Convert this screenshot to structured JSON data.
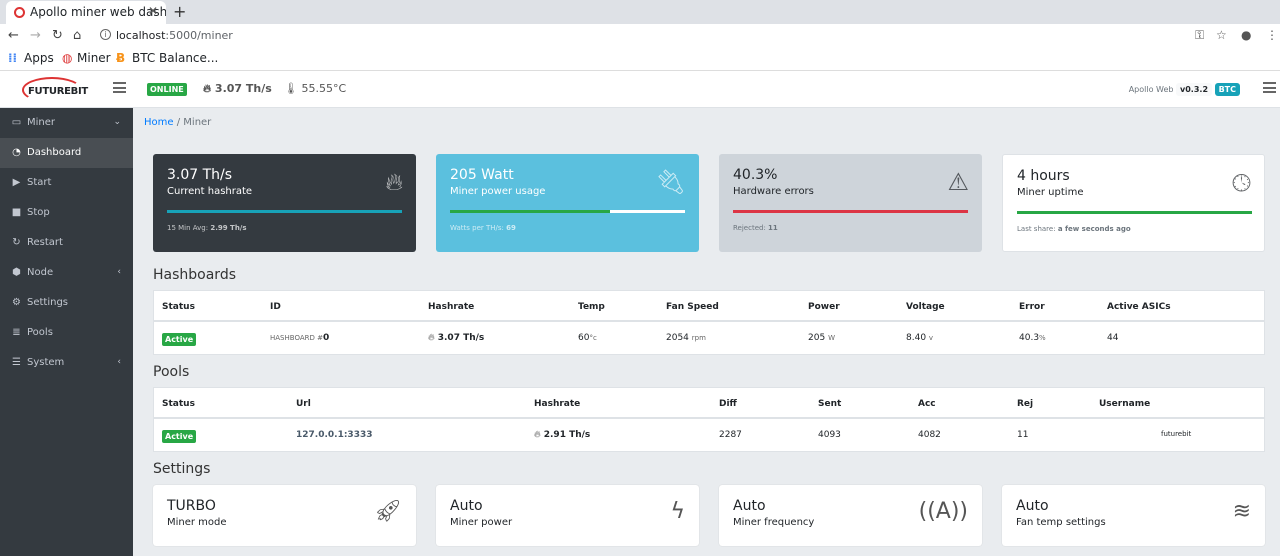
{
  "browser": {
    "tab_title": "Apollo miner web dash",
    "new_tab": "+",
    "host": "localhost",
    "path": ":5000/miner",
    "bookmarks": [
      {
        "label": "Apps"
      },
      {
        "label": "Miner"
      },
      {
        "label": "BTC Balance..."
      }
    ]
  },
  "topbar": {
    "status": "ONLINE",
    "hashrate": "3.07 Th/s",
    "temp": "55.55°C",
    "app_name": "Apollo Web",
    "version": "v0.3.2",
    "coin": "BTC",
    "logo": "FUTUREBIT"
  },
  "sidebar": {
    "items": [
      {
        "label": "Miner",
        "icon": "hdd-icon",
        "chevron": "⌄"
      },
      {
        "label": "Dashboard",
        "icon": "gauge-icon"
      },
      {
        "label": "Start",
        "icon": "play-icon"
      },
      {
        "label": "Stop",
        "icon": "stop-icon"
      },
      {
        "label": "Restart",
        "icon": "redo-icon"
      },
      {
        "label": "Node",
        "icon": "cube-icon",
        "chevron": "‹"
      },
      {
        "label": "Settings",
        "icon": "gear-icon"
      },
      {
        "label": "Pools",
        "icon": "database-icon"
      },
      {
        "label": "System",
        "icon": "server-icon",
        "chevron": "‹"
      }
    ]
  },
  "breadcrumb": {
    "home": "Home",
    "sep": "/",
    "current": "Miner"
  },
  "boxes": [
    {
      "value": "3.07 Th/s",
      "label": "Current hashrate",
      "foot_label": "15 Min Avg:",
      "foot_value": "2.99 Th/s",
      "bar": 1.0,
      "bg": "#343a40",
      "fg": "#fff",
      "barcolor": "#17a2b8"
    },
    {
      "value": "205 Watt",
      "label": "Miner power usage",
      "foot_label": "Watts per TH/s:",
      "foot_value": "69",
      "bar": 0.68,
      "bg": "#5bc0de",
      "fg": "#fff",
      "barcolor": "#28a745"
    },
    {
      "value": "40.3%",
      "label": "Hardware errors",
      "foot_label": "Rejected:",
      "foot_value": "11",
      "bar": 1.0,
      "bg": "#ced4da",
      "fg": "#212529",
      "barcolor": "#dc3545"
    },
    {
      "value": "4 hours",
      "label": "Miner uptime",
      "foot_label": "Last share:",
      "foot_value": "a few seconds ago",
      "bar": 1.0,
      "bg": "#fff",
      "fg": "#212529",
      "barcolor": "#28a745"
    }
  ],
  "hashboards": {
    "title": "Hashboards",
    "headers": [
      "Status",
      "ID",
      "Hashrate",
      "Temp",
      "Fan Speed",
      "Power",
      "Voltage",
      "Error",
      "Active ASICs"
    ],
    "row": {
      "status": "Active",
      "id_prefix": "HASHBOARD #",
      "id": "0",
      "hashrate": "3.07 Th/s",
      "temp": "60",
      "temp_unit": "°c",
      "fan": "2054",
      "fan_unit": "rpm",
      "power": "205",
      "power_unit": "W",
      "voltage": "8.40",
      "voltage_unit": "v",
      "error": "40.3",
      "error_unit": "%",
      "asics": "44"
    }
  },
  "pools": {
    "title": "Pools",
    "headers": [
      "Status",
      "Url",
      "Hashrate",
      "Diff",
      "Sent",
      "Acc",
      "Rej",
      "Username"
    ],
    "row": {
      "status": "Active",
      "url": "127.0.0.1:3333",
      "hashrate": "2.91 Th/s",
      "diff": "2287",
      "sent": "4093",
      "acc": "4082",
      "rej": "11",
      "username": "futurebit"
    }
  },
  "settings": {
    "title": "Settings",
    "cards": [
      {
        "value": "TURBO",
        "label": "Miner mode",
        "icon": "rocket-icon"
      },
      {
        "value": "Auto",
        "label": "Miner power",
        "icon": "bolt-icon"
      },
      {
        "value": "Auto",
        "label": "Miner frequency",
        "icon": "broadcast-icon"
      },
      {
        "value": "Auto",
        "label": "Fan temp settings",
        "icon": "wind-icon"
      }
    ]
  }
}
